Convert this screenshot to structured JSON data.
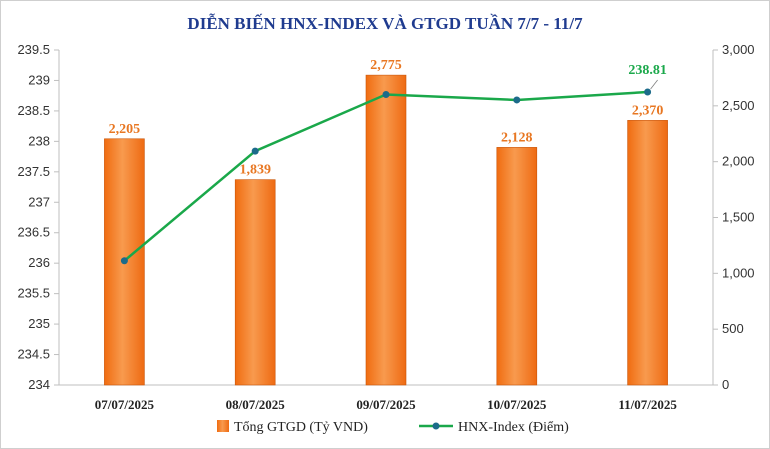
{
  "chart_data": {
    "type": "bar",
    "title": "DIỄN BIẾN HNX-INDEX VÀ GTGD TUẦN 7/7 - 11/7",
    "categories": [
      "07/07/2025",
      "08/07/2025",
      "09/07/2025",
      "10/07/2025",
      "11/07/2025"
    ],
    "series": [
      {
        "name": "Tổng GTGD (Tỷ VND)",
        "type": "bar",
        "axis": "right",
        "values": [
          2205,
          1839,
          2775,
          2128,
          2370
        ],
        "labels": [
          "2,205",
          "1,839",
          "2,775",
          "2,128",
          "2,370"
        ],
        "color": "#f47b20"
      },
      {
        "name": "HNX-Index (Điểm)",
        "type": "line",
        "axis": "left",
        "values": [
          236.04,
          237.84,
          238.77,
          238.68,
          238.81
        ],
        "labels": [
          "",
          "",
          "",
          "",
          "238.81"
        ],
        "color": "#1aa84a",
        "marker_color": "#1c6b8a"
      }
    ],
    "left_axis": {
      "min": 234,
      "max": 239.5,
      "ticks": [
        234,
        234.5,
        235,
        235.5,
        236,
        236.5,
        237,
        237.5,
        238,
        238.5,
        239,
        239.5
      ],
      "tick_labels": [
        "234",
        "234.5",
        "235",
        "235.5",
        "236",
        "236.5",
        "237",
        "237.5",
        "238",
        "238.5",
        "239",
        "239.5"
      ]
    },
    "right_axis": {
      "min": 0,
      "max": 3000,
      "ticks": [
        0,
        500,
        1000,
        1500,
        2000,
        2500,
        3000
      ],
      "tick_labels": [
        "0",
        "500",
        "1,000",
        "1,500",
        "2,000",
        "2,500",
        "3,000"
      ]
    },
    "grid": false,
    "legend_position": "bottom"
  }
}
